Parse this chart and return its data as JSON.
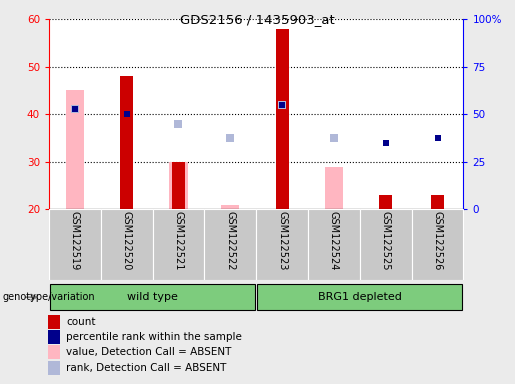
{
  "title": "GDS2156 / 1435903_at",
  "samples": [
    "GSM122519",
    "GSM122520",
    "GSM122521",
    "GSM122522",
    "GSM122523",
    "GSM122524",
    "GSM122525",
    "GSM122526"
  ],
  "ylim_left": [
    20,
    60
  ],
  "ylim_right": [
    0,
    100
  ],
  "yticks_left": [
    20,
    30,
    40,
    50,
    60
  ],
  "yticks_right": [
    0,
    25,
    50,
    75,
    100
  ],
  "yticklabels_right": [
    "0",
    "25",
    "50",
    "75",
    "100%"
  ],
  "count_bars": [
    null,
    48,
    30,
    null,
    58,
    null,
    23,
    23
  ],
  "value_absent_bars": [
    45,
    null,
    30,
    21,
    null,
    29,
    null,
    null
  ],
  "percentile_rank_squares": [
    41,
    40,
    null,
    null,
    42,
    null,
    34,
    35
  ],
  "rank_absent_squares": [
    41,
    null,
    38,
    35,
    42,
    35,
    null,
    null
  ],
  "color_count": "#cc0000",
  "color_percentile": "#00008b",
  "color_value_absent": "#ffb6c1",
  "color_rank_absent": "#b0b8d8",
  "bg_color": "#ebebeb",
  "plot_bg_color": "#ffffff",
  "group_bg_color": "#7dcc7d",
  "label_bg_color": "#c8c8c8",
  "legend_items": [
    {
      "label": "count",
      "color": "#cc0000"
    },
    {
      "label": "percentile rank within the sample",
      "color": "#00008b"
    },
    {
      "label": "value, Detection Call = ABSENT",
      "color": "#ffb6c1"
    },
    {
      "label": "rank, Detection Call = ABSENT",
      "color": "#b0b8d8"
    }
  ]
}
